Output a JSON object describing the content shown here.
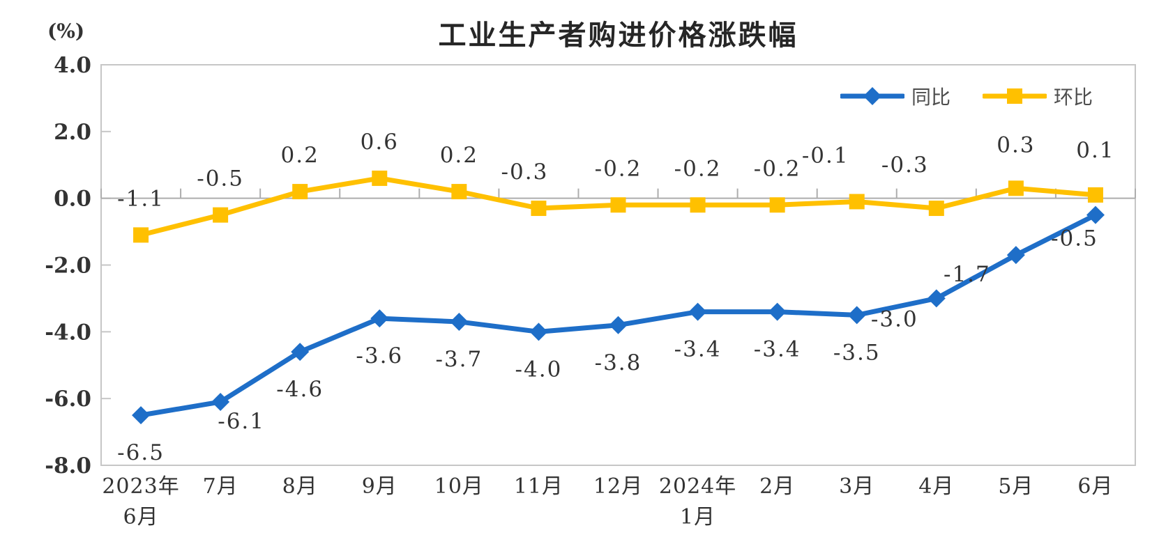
{
  "page": {
    "background": "#ffffff"
  },
  "chart_data": {
    "type": "line",
    "title": "工业生产者购进价格涨跌幅",
    "ylabel": "(%)",
    "xlabel": "",
    "ylim": [
      -8.0,
      4.0
    ],
    "y_ticks": [
      4.0,
      2.0,
      0.0,
      -2.0,
      -4.0,
      -6.0,
      -8.0
    ],
    "y_tick_labels": [
      "4.0",
      "2.0",
      "0.0",
      "-2.0",
      "-4.0",
      "-6.0",
      "-8.0"
    ],
    "categories": [
      "2023年6月",
      "7月",
      "8月",
      "9月",
      "10月",
      "11月",
      "12月",
      "2024年1月",
      "2月",
      "3月",
      "4月",
      "5月",
      "6月"
    ],
    "x_tick_lines": [
      [
        "2023年",
        "6月"
      ],
      [
        "7月"
      ],
      [
        "8月"
      ],
      [
        "9月"
      ],
      [
        "10月"
      ],
      [
        "11月"
      ],
      [
        "12月"
      ],
      [
        "2024年",
        "1月"
      ],
      [
        "2月"
      ],
      [
        "3月"
      ],
      [
        "4月"
      ],
      [
        "5月"
      ],
      [
        "6月"
      ]
    ],
    "series": [
      {
        "name": "同比",
        "marker": "diamond",
        "color": "#1E6EC8",
        "label_position": "below",
        "values": [
          -6.5,
          -6.1,
          -4.6,
          -3.6,
          -3.7,
          -4.0,
          -3.8,
          -3.4,
          -3.4,
          -3.5,
          -3.0,
          -1.7,
          -0.5
        ]
      },
      {
        "name": "环比",
        "marker": "square",
        "color": "#FFC000",
        "label_position": "above",
        "values": [
          -1.1,
          -0.5,
          0.2,
          0.6,
          0.2,
          -0.3,
          -0.2,
          -0.2,
          -0.2,
          -0.1,
          -0.3,
          0.3,
          0.1
        ]
      }
    ],
    "grid": false,
    "legend_position": "top-right-inside",
    "border_color": "#C6C6C6",
    "axis_color": "#ADADAD",
    "label_color": "#333333"
  }
}
